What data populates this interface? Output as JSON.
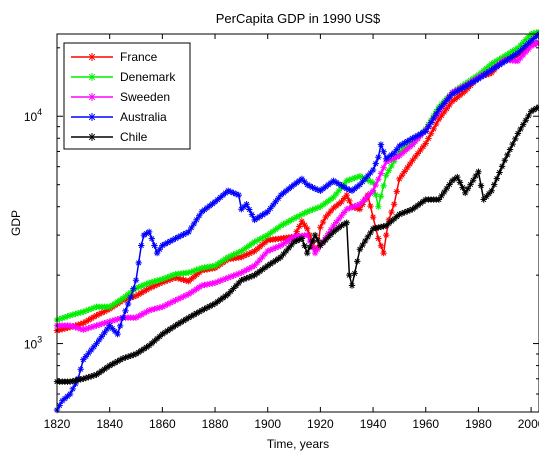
{
  "chart_data": {
    "type": "line",
    "title": "PerCapita GDP in 1990 US$",
    "xlabel": "Time, years",
    "ylabel": "GDP",
    "xlim": [
      1820,
      2003
    ],
    "ylim": [
      500,
      23000
    ],
    "yscale": "log",
    "grid": false,
    "legend_position": "top-left",
    "xticks": [
      "1820",
      "1840",
      "1860",
      "1880",
      "1900",
      "1920",
      "1940",
      "1960",
      "1980",
      "2000"
    ],
    "yticks": [
      {
        "base": "10",
        "exp": "3",
        "value": 1000
      },
      {
        "base": "10",
        "exp": "4",
        "value": 10000
      }
    ],
    "series": [
      {
        "name": "France",
        "color": "#ff0000",
        "marker": "asterisk",
        "x": [
          1820,
          1825,
          1830,
          1835,
          1840,
          1845,
          1850,
          1855,
          1860,
          1865,
          1870,
          1875,
          1880,
          1885,
          1890,
          1895,
          1900,
          1905,
          1910,
          1913,
          1915,
          1916,
          1918,
          1919,
          1920,
          1922,
          1925,
          1928,
          1930,
          1932,
          1935,
          1938,
          1940,
          1942,
          1944,
          1945,
          1946,
          1948,
          1950,
          1955,
          1960,
          1965,
          1970,
          1975,
          1980,
          1985,
          1990,
          1995,
          2000,
          2003
        ],
        "y": [
          1140,
          1180,
          1230,
          1330,
          1420,
          1550,
          1620,
          1750,
          1860,
          1950,
          1880,
          2100,
          2150,
          2350,
          2400,
          2550,
          2850,
          2900,
          2950,
          3450,
          3200,
          3000,
          2600,
          2650,
          3250,
          3600,
          3950,
          4200,
          4500,
          4000,
          3900,
          4500,
          3600,
          2900,
          2500,
          3000,
          3500,
          4100,
          5300,
          6400,
          7600,
          9700,
          11600,
          12900,
          14800,
          15500,
          18000,
          18500,
          20800,
          21000
        ]
      },
      {
        "name": "Denemark",
        "color": "#00ee00",
        "marker": "asterisk",
        "x": [
          1820,
          1825,
          1830,
          1835,
          1840,
          1845,
          1850,
          1855,
          1860,
          1865,
          1870,
          1875,
          1880,
          1885,
          1890,
          1895,
          1900,
          1905,
          1910,
          1915,
          1920,
          1925,
          1930,
          1935,
          1940,
          1942,
          1945,
          1950,
          1955,
          1960,
          1965,
          1970,
          1975,
          1980,
          1985,
          1990,
          1995,
          2000,
          2003
        ],
        "y": [
          1270,
          1330,
          1380,
          1450,
          1450,
          1580,
          1750,
          1850,
          1920,
          2020,
          2050,
          2150,
          2200,
          2400,
          2550,
          2800,
          3000,
          3300,
          3550,
          3800,
          4000,
          4400,
          5200,
          5450,
          5100,
          4000,
          5500,
          6950,
          7600,
          8800,
          11000,
          12700,
          13900,
          15200,
          17000,
          18400,
          20000,
          23000,
          23500
        ]
      },
      {
        "name": "Sweeden",
        "color": "#ff00ff",
        "marker": "asterisk",
        "x": [
          1820,
          1825,
          1830,
          1835,
          1840,
          1845,
          1850,
          1855,
          1860,
          1865,
          1870,
          1875,
          1880,
          1885,
          1890,
          1895,
          1900,
          1905,
          1910,
          1915,
          1918,
          1920,
          1925,
          1930,
          1935,
          1940,
          1945,
          1950,
          1955,
          1960,
          1965,
          1970,
          1975,
          1980,
          1985,
          1990,
          1995,
          2000,
          2003
        ],
        "y": [
          1200,
          1200,
          1150,
          1200,
          1250,
          1300,
          1300,
          1400,
          1450,
          1550,
          1650,
          1800,
          1850,
          1950,
          2050,
          2200,
          2550,
          2700,
          2950,
          3000,
          2500,
          2700,
          3300,
          3900,
          4100,
          4700,
          6300,
          6700,
          7500,
          8700,
          10500,
          12700,
          13600,
          14800,
          16000,
          17700,
          17500,
          20300,
          21200
        ]
      },
      {
        "name": "Australia",
        "color": "#0000ff",
        "marker": "asterisk",
        "x": [
          1820,
          1822,
          1825,
          1828,
          1830,
          1835,
          1840,
          1843,
          1845,
          1848,
          1850,
          1852,
          1853,
          1855,
          1857,
          1858,
          1860,
          1865,
          1870,
          1875,
          1880,
          1885,
          1889,
          1890,
          1892,
          1895,
          1900,
          1905,
          1910,
          1913,
          1915,
          1918,
          1920,
          1925,
          1930,
          1932,
          1935,
          1940,
          1942,
          1943,
          1945,
          1948,
          1950,
          1955,
          1960,
          1965,
          1970,
          1975,
          1980,
          1985,
          1990,
          1995,
          2000,
          2003
        ],
        "y": [
          510,
          560,
          600,
          700,
          850,
          1000,
          1200,
          1100,
          1300,
          1600,
          1900,
          2700,
          3000,
          3100,
          2700,
          2500,
          2700,
          2900,
          3100,
          3800,
          4200,
          4700,
          4500,
          3900,
          4100,
          3500,
          3800,
          4500,
          5000,
          5300,
          5000,
          4800,
          4700,
          5200,
          4800,
          4700,
          5000,
          5800,
          6600,
          7500,
          6500,
          6900,
          7400,
          8000,
          8600,
          10700,
          12500,
          13500,
          14600,
          16000,
          17400,
          19000,
          21500,
          23000
        ]
      },
      {
        "name": "Chile",
        "color": "#000000",
        "marker": "asterisk",
        "x": [
          1820,
          1825,
          1830,
          1835,
          1840,
          1845,
          1850,
          1855,
          1860,
          1865,
          1870,
          1875,
          1880,
          1885,
          1890,
          1895,
          1900,
          1905,
          1910,
          1913,
          1915,
          1918,
          1920,
          1925,
          1928,
          1930,
          1931,
          1932,
          1935,
          1940,
          1945,
          1950,
          1955,
          1960,
          1965,
          1970,
          1972,
          1975,
          1980,
          1982,
          1985,
          1990,
          1995,
          2000,
          2003
        ],
        "y": [
          680,
          680,
          700,
          730,
          800,
          860,
          900,
          980,
          1100,
          1200,
          1300,
          1400,
          1500,
          1650,
          1900,
          2000,
          2200,
          2400,
          2800,
          2900,
          2500,
          3000,
          2700,
          3100,
          3300,
          3400,
          2000,
          1800,
          2600,
          3200,
          3300,
          3700,
          3900,
          4300,
          4300,
          5200,
          5400,
          4600,
          5700,
          4300,
          4700,
          6400,
          8400,
          10500,
          11000
        ]
      }
    ]
  }
}
